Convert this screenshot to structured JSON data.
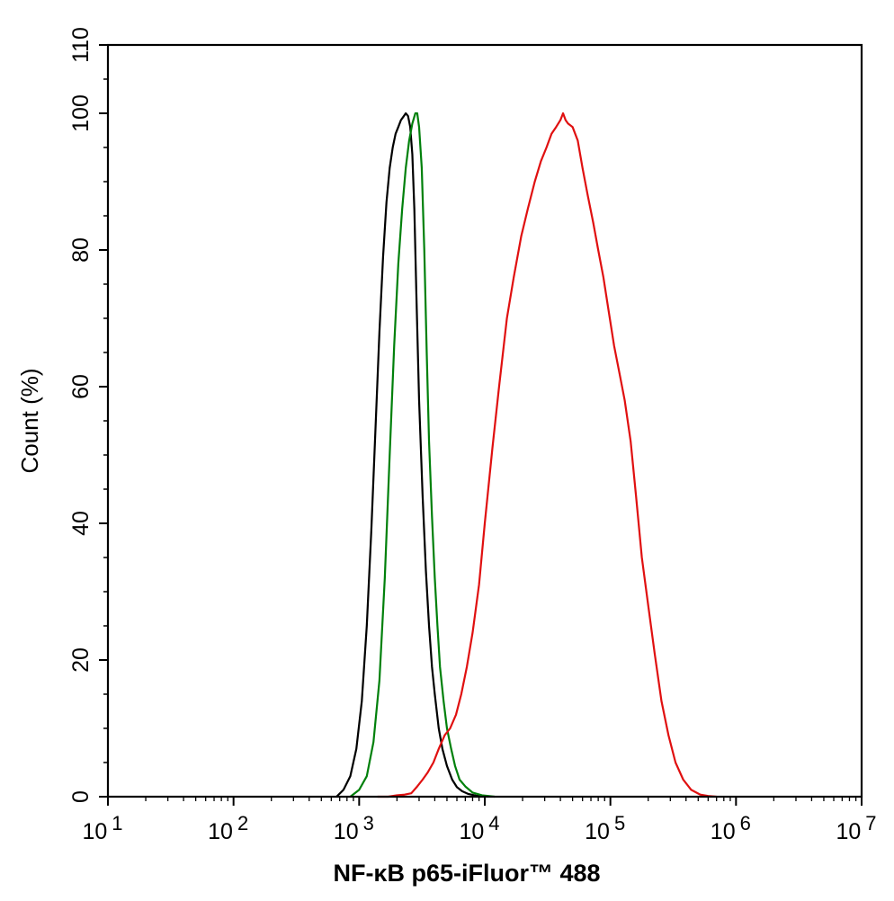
{
  "chart_data": {
    "type": "line",
    "xlabel": "NF-κB p65-iFluor™ 488",
    "ylabel": "Count  (%)",
    "x_scale": "log",
    "xlim": [
      10,
      10000000
    ],
    "ylim": [
      0,
      110
    ],
    "x_ticks": [
      {
        "value": 10,
        "base": "10",
        "exp": "1"
      },
      {
        "value": 100,
        "base": "10",
        "exp": "2"
      },
      {
        "value": 1000,
        "base": "10",
        "exp": "3"
      },
      {
        "value": 10000,
        "base": "10",
        "exp": "4"
      },
      {
        "value": 100000,
        "base": "10",
        "exp": "5"
      },
      {
        "value": 1000000,
        "base": "10",
        "exp": "6"
      },
      {
        "value": 10000000,
        "base": "10",
        "exp": "7"
      }
    ],
    "y_ticks": [
      "0",
      "20",
      "40",
      "60",
      "80",
      "100",
      "110"
    ],
    "grid": false,
    "legend": "none",
    "series": [
      {
        "color": "#000000",
        "x": [
          660,
          750,
          850,
          950,
          1050,
          1150,
          1250,
          1350,
          1450,
          1550,
          1650,
          1750,
          1850,
          1950,
          2050,
          2150,
          2250,
          2350,
          2450,
          2550,
          2650,
          2750,
          2850,
          3000,
          3200,
          3400,
          3600,
          3800,
          4000,
          4300,
          4600,
          5000,
          5500,
          6000,
          6600,
          7400,
          8500,
          10000
        ],
        "y": [
          0,
          1,
          3,
          7,
          14,
          25,
          39,
          54,
          68,
          79,
          87,
          92,
          95,
          97,
          98,
          99,
          99.5,
          100,
          99.6,
          98,
          94,
          86,
          74,
          58,
          44,
          33,
          25,
          19,
          15,
          10,
          7,
          4.5,
          2.5,
          1.4,
          0.8,
          0.4,
          0.15,
          0
        ]
      },
      {
        "color": "#00800b",
        "x": [
          850,
          1000,
          1150,
          1300,
          1450,
          1600,
          1750,
          1900,
          2050,
          2200,
          2350,
          2500,
          2650,
          2800,
          2900,
          3000,
          3150,
          3300,
          3450,
          3600,
          3800,
          4000,
          4200,
          4400,
          4700,
          5000,
          5400,
          5800,
          6300,
          7000,
          8000,
          9500,
          12000
        ],
        "y": [
          0,
          1,
          3,
          8,
          17,
          32,
          50,
          66,
          78,
          86,
          92,
          96,
          98.5,
          100,
          100,
          98,
          92,
          80,
          65,
          52,
          41,
          32,
          25,
          19,
          14,
          10,
          7,
          4.5,
          2.5,
          1.5,
          0.6,
          0.2,
          0
        ]
      },
      {
        "color": "#e01010",
        "x": [
          1400,
          1700,
          2000,
          2300,
          2600,
          2900,
          3200,
          3500,
          3900,
          4300,
          4800,
          5300,
          5900,
          6500,
          7200,
          8000,
          9000,
          10000,
          11500,
          13000,
          15000,
          17000,
          19500,
          22000,
          25000,
          28000,
          31000,
          34000,
          37000,
          40000,
          42000,
          44000,
          46000,
          50000,
          55000,
          60000,
          66000,
          73000,
          80000,
          88000,
          97000,
          107000,
          118000,
          130000,
          145000,
          160000,
          178000,
          200000,
          225000,
          255000,
          290000,
          330000,
          380000,
          440000,
          520000,
          600000,
          700000
        ],
        "y": [
          0,
          0,
          0.2,
          0.3,
          0.5,
          1.5,
          2.5,
          3.5,
          5,
          7,
          9,
          10,
          12,
          15,
          19,
          24,
          31,
          40,
          51,
          60,
          70,
          76,
          82,
          86,
          90,
          93,
          95,
          97,
          98,
          99,
          100,
          99,
          98.5,
          98,
          96,
          92,
          88,
          84,
          80,
          76,
          71,
          66,
          62,
          58,
          52,
          44,
          35,
          28,
          21,
          14,
          9,
          5,
          2.5,
          1,
          0.3,
          0.1,
          0
        ]
      }
    ]
  }
}
